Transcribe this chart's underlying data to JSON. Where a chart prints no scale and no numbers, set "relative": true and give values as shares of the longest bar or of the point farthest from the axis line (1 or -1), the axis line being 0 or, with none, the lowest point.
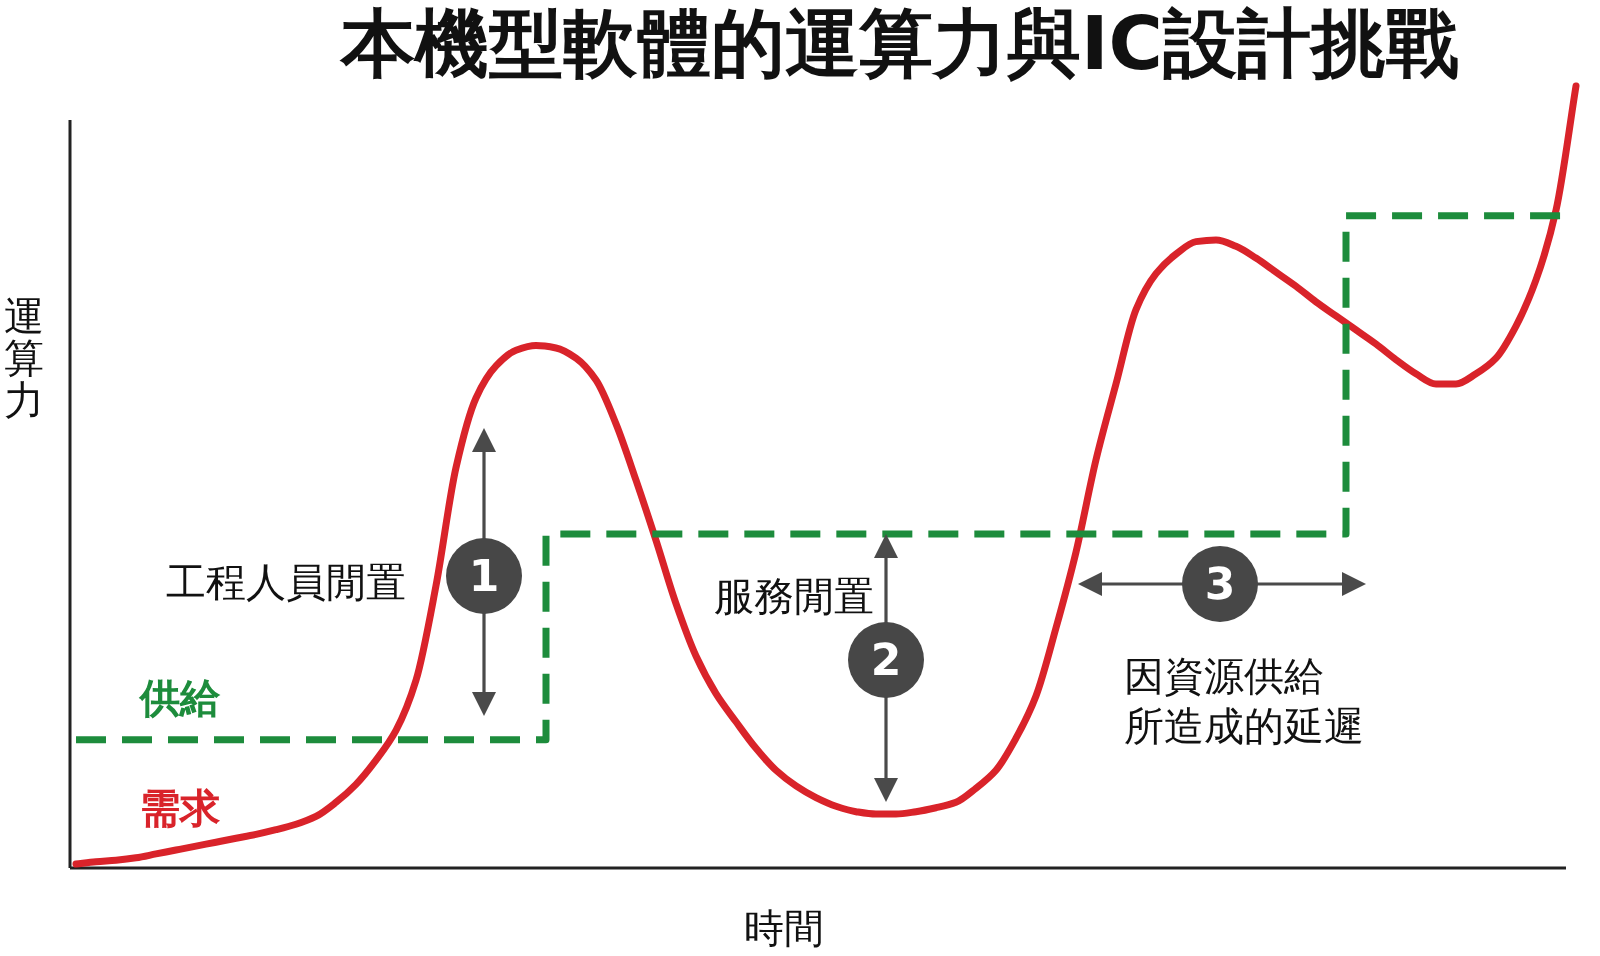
{
  "chart_data": {
    "type": "line",
    "title": "本機型軟體的運算力與IC設計挑戰",
    "xlabel": "時間",
    "ylabel": "運算力",
    "relative": true,
    "legend": false,
    "categories": [
      null,
      null,
      null,
      null,
      null,
      null,
      null,
      null,
      null,
      null,
      null,
      null,
      null,
      null,
      null,
      null,
      null,
      null,
      null,
      null,
      null,
      null,
      null,
      null,
      null,
      null,
      null,
      null,
      null,
      null,
      null,
      null,
      null,
      null,
      null,
      null,
      null,
      null,
      null,
      null,
      null,
      null,
      null,
      null,
      null,
      null,
      null,
      null,
      null,
      null,
      null,
      null,
      null,
      null,
      null,
      null,
      null,
      null,
      null,
      null,
      null,
      null,
      null,
      null,
      null,
      null,
      null,
      null,
      null,
      null,
      null,
      null,
      null,
      null,
      null,
      null
    ],
    "series": [
      {
        "name": "需求",
        "type": "line",
        "color": "#d9232a",
        "values": [
          0.005,
          0.008,
          0.01,
          0.013,
          0.018,
          0.023,
          0.028,
          0.033,
          0.038,
          0.043,
          0.049,
          0.056,
          0.066,
          0.084,
          0.107,
          0.138,
          0.176,
          0.24,
          0.361,
          0.512,
          0.601,
          0.642,
          0.662,
          0.668,
          0.665,
          0.652,
          0.624,
          0.568,
          0.496,
          0.419,
          0.338,
          0.271,
          0.223,
          0.187,
          0.153,
          0.125,
          0.105,
          0.09,
          0.079,
          0.072,
          0.069,
          0.069,
          0.072,
          0.077,
          0.084,
          0.102,
          0.125,
          0.166,
          0.22,
          0.307,
          0.404,
          0.522,
          0.619,
          0.714,
          0.76,
          0.785,
          0.801,
          0.803,
          0.795,
          0.78,
          0.762,
          0.744,
          0.724,
          0.706,
          0.688,
          0.67,
          0.65,
          0.632,
          0.619,
          0.619,
          0.632,
          0.652,
          0.693,
          0.752,
          0.841,
          1
        ]
      },
      {
        "name": "供給",
        "type": "step",
        "color": "#1d8c3c",
        "line_style": "dashed",
        "values": [
          0.164,
          0.164,
          0.164,
          0.164,
          0.164,
          0.164,
          0.164,
          0.164,
          0.164,
          0.164,
          0.164,
          0.164,
          0.164,
          0.164,
          0.164,
          0.164,
          0.164,
          0.164,
          0.164,
          0.164,
          0.164,
          0.164,
          0.164,
          0.164,
          0.427,
          0.427,
          0.427,
          0.427,
          0.427,
          0.427,
          0.427,
          0.427,
          0.427,
          0.427,
          0.427,
          0.427,
          0.427,
          0.427,
          0.427,
          0.427,
          0.427,
          0.427,
          0.427,
          0.427,
          0.427,
          0.427,
          0.427,
          0.427,
          0.427,
          0.427,
          0.427,
          0.427,
          0.427,
          0.427,
          0.427,
          0.427,
          0.427,
          0.427,
          0.427,
          0.427,
          0.427,
          0.427,
          0.427,
          0.427,
          0.834,
          0.834,
          0.834,
          0.834,
          0.834,
          0.834,
          0.834,
          0.834,
          0.834,
          0.834,
          0.834,
          0.834
        ]
      }
    ],
    "annotations": [
      "工程人員閒置",
      "1",
      "服務閒置",
      "2",
      "因資源供給所造成的延遲",
      "3"
    ]
  }
}
